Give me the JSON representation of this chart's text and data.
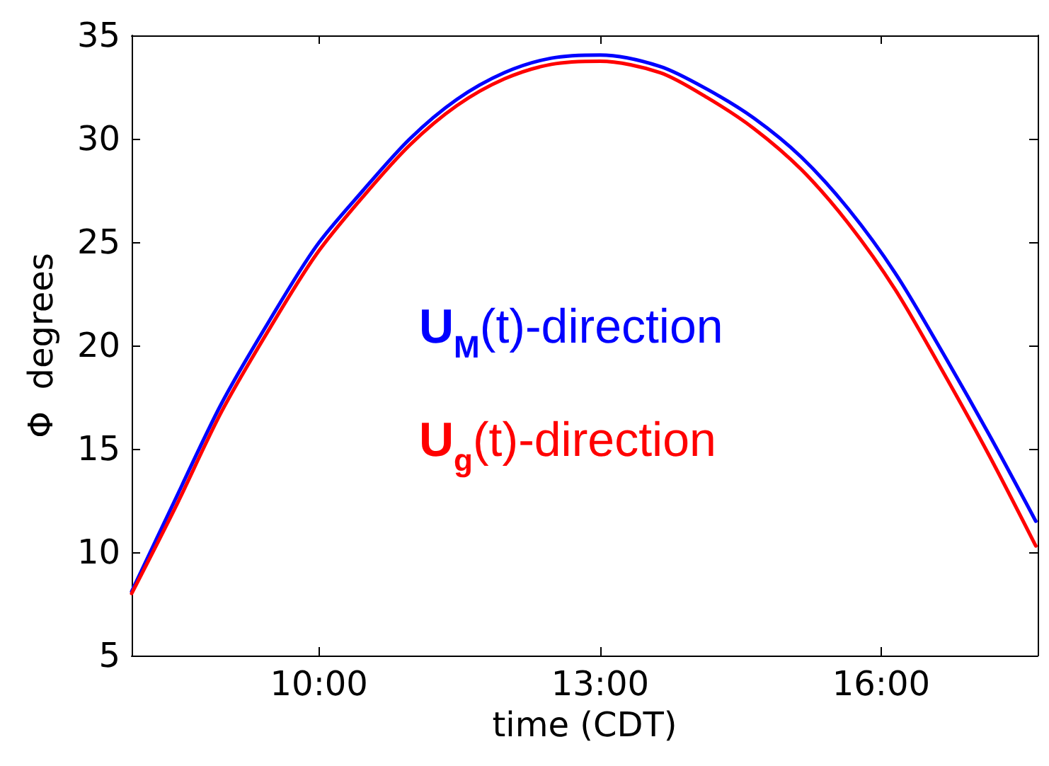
{
  "chart_data": {
    "type": "line",
    "xlabel": "time (CDT)",
    "ylabel": "Φ  degrees",
    "xlim": [
      8,
      17.67
    ],
    "ylim": [
      5,
      35
    ],
    "xticks": [
      {
        "value": 10,
        "label": "10:00"
      },
      {
        "value": 13,
        "label": "13:00"
      },
      {
        "value": 16,
        "label": "16:00"
      }
    ],
    "yticks": [
      5,
      10,
      15,
      20,
      25,
      30,
      35
    ],
    "grid": false,
    "legend": false,
    "marker": "none",
    "line_style": "solid",
    "x": [
      8,
      8.46,
      8.96,
      9.47,
      9.97,
      10.47,
      10.97,
      11.47,
      11.98,
      12.48,
      13,
      13.64,
      14.14,
      14.64,
      15.15,
      15.65,
      16.15,
      16.65,
      17.15,
      17.65
    ],
    "series": [
      {
        "name": "U$_{M}$(t)-direction",
        "color": "#0000ff",
        "values": [
          8.1,
          12.5,
          17.2,
          21.2,
          24.8,
          27.5,
          30.0,
          31.9,
          33.2,
          33.9,
          34.05,
          33.5,
          32.4,
          31.0,
          29.1,
          26.6,
          23.5,
          19.7,
          15.7,
          11.5
        ]
      },
      {
        "name": "U$_{g}$(t)-direction",
        "color": "#ff0000",
        "values": [
          8.0,
          12.1,
          16.8,
          20.8,
          24.4,
          27.2,
          29.7,
          31.6,
          32.9,
          33.6,
          33.75,
          33.2,
          32.0,
          30.5,
          28.5,
          25.9,
          22.7,
          18.8,
          14.7,
          10.3
        ]
      }
    ]
  }
}
